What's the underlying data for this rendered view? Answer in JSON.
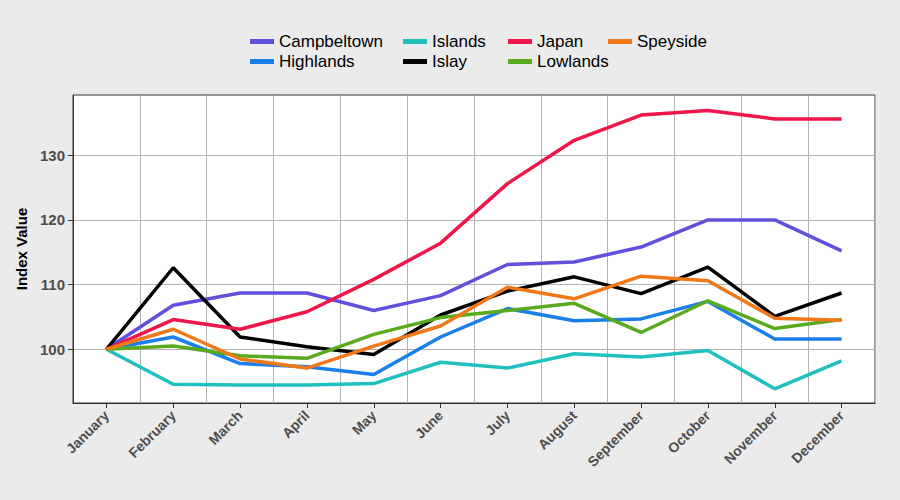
{
  "chart_data": {
    "type": "line",
    "y_label": "Index Value",
    "categories": [
      "January",
      "February",
      "March",
      "April",
      "May",
      "June",
      "July",
      "August",
      "September",
      "October",
      "November",
      "December"
    ],
    "series": [
      {
        "name": "Campbeltown",
        "color": "#6050dc",
        "values": [
          100,
          106.8,
          108.7,
          108.7,
          106.0,
          108.3,
          113.1,
          113.5,
          115.8,
          120.0,
          120.0,
          115.2
        ]
      },
      {
        "name": "Highlands",
        "color": "#1a7fe8",
        "values": [
          100,
          101.9,
          97.8,
          97.3,
          96.1,
          101.9,
          106.3,
          104.4,
          104.7,
          107.4,
          101.6,
          101.6
        ]
      },
      {
        "name": "Islands",
        "color": "#21c0c0",
        "values": [
          100,
          94.6,
          94.5,
          94.5,
          94.7,
          98.0,
          97.1,
          99.3,
          98.8,
          99.8,
          93.9,
          98.2
        ]
      },
      {
        "name": "Islay",
        "color": "#000000",
        "values": [
          100,
          112.6,
          101.9,
          100.4,
          99.2,
          105.3,
          109.0,
          111.2,
          108.6,
          112.7,
          105.1,
          108.7
        ]
      },
      {
        "name": "Japan",
        "color": "#f0154a",
        "values": [
          100,
          104.6,
          103.1,
          105.8,
          110.8,
          116.4,
          125.6,
          132.3,
          136.2,
          136.9,
          135.6,
          135.6
        ]
      },
      {
        "name": "Lowlands",
        "color": "#5aaa1e",
        "values": [
          100,
          100.5,
          99.0,
          98.6,
          102.3,
          104.9,
          106.0,
          107.1,
          102.6,
          107.5,
          103.2,
          104.6
        ]
      },
      {
        "name": "Speyside",
        "color": "#f07818",
        "values": [
          100,
          103.1,
          98.5,
          97.1,
          100.5,
          103.6,
          109.6,
          107.8,
          111.3,
          110.6,
          104.8,
          104.5
        ]
      }
    ],
    "ylim": [
      91.7,
      139.3
    ],
    "yticks": [
      100,
      110,
      120,
      130
    ],
    "grid": true,
    "legend": "top"
  }
}
